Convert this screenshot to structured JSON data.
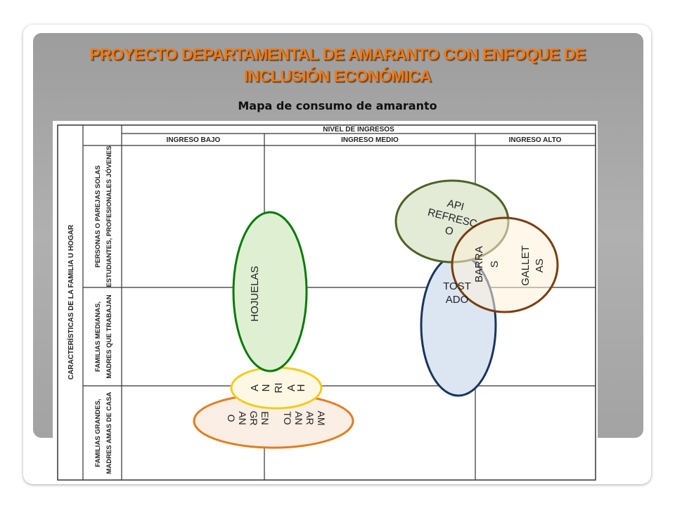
{
  "slide": {
    "title_line1": "PROYECTO DEPARTAMENTAL DE AMARANTO CON ENFOQUE DE",
    "title_line2": "INCLUSIÓN ECONÓMICA",
    "subtitle": "Mapa de consumo de amaranto"
  },
  "table": {
    "left_header": "CARACTERÍSTICAS DE LA FAMILIA U HOGAR",
    "top_header": "NIVEL DE INGRESOS",
    "columns": [
      "INGRESO BAJO",
      "INGRESO MEDIO",
      "INGRESO ALTO"
    ],
    "rows": [
      {
        "line1": "PERSONAS O PAREJAS SOLAS",
        "line2": "ESTUDIANTES, PROFESIONALES JÓVENES"
      },
      {
        "line1": "FAMILIAS MEDIANAS,",
        "line2": "MADRES QUE TRABAJAN"
      },
      {
        "line1": "FAMILIAS GRANDES,",
        "line2": "MADRES AMAS DE CASA"
      }
    ]
  },
  "products": {
    "hojuelas": {
      "label": "HOJUELAS",
      "stroke": "#0a7a0a",
      "fill": "#dff0d2"
    },
    "harina": {
      "lines": [
        "H",
        "A",
        "RI",
        "N",
        "A"
      ],
      "stroke": "#f2cc1c",
      "fill": "#fdf8e3"
    },
    "amaranto_grano": {
      "lines": [
        "AM",
        "AR",
        "AN",
        "TO",
        "EN",
        "GR",
        "AN",
        "O"
      ],
      "stroke": "#e07e22",
      "fill": "#fbeee4"
    },
    "tostado": {
      "lines": [
        "TOST",
        "ADO"
      ],
      "stroke": "#1a355e",
      "fill": "#dce6f3"
    },
    "api_refresco": {
      "lines": [
        "API",
        "REFRESC",
        "O"
      ],
      "stroke": "#4f6228",
      "fill": "#e3ead6"
    },
    "barras": {
      "lines": [
        "BARRA",
        "S"
      ],
      "stroke": "#7a3d10",
      "fill": "rgba(245,235,210,0.55)"
    },
    "galletas": {
      "lines": [
        "GALLET",
        "AS"
      ],
      "stroke": "#6a3408",
      "fill": "#fdf0d8"
    }
  }
}
